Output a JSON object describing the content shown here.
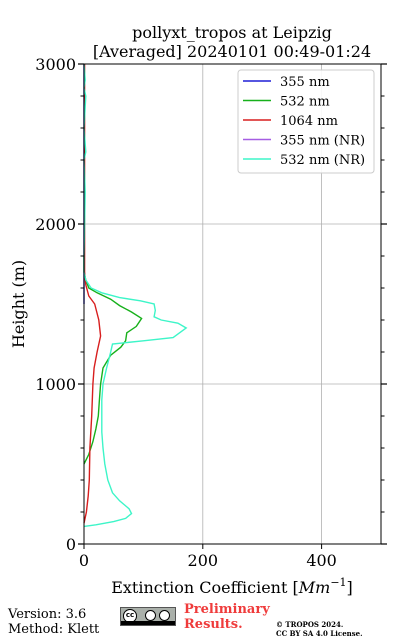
{
  "chart_data": {
    "type": "line",
    "title": "pollyxt_tropos at Leipzig",
    "subtitle": "[Averaged] 20240101 00:49-01:24",
    "xlabel": "Extinction Coefficient",
    "xlabel_unit": "Mm",
    "xlabel_unit_exp": "−1",
    "ylabel": "Height (m)",
    "xlim": [
      0,
      500
    ],
    "ylim": [
      0,
      3000
    ],
    "x_ticks": [
      0,
      200,
      400
    ],
    "y_ticks": [
      0,
      1000,
      2000,
      3000
    ],
    "grid": true,
    "legend_position": "top-right",
    "series": [
      {
        "name": "355 nm",
        "color": "#1f1fd6",
        "points": [
          [
            0,
            1500
          ],
          [
            0,
            2000
          ],
          [
            0,
            2500
          ],
          [
            0,
            3000
          ]
        ]
      },
      {
        "name": "532 nm",
        "color": "#17b01b",
        "points": [
          [
            0,
            500
          ],
          [
            8,
            560
          ],
          [
            15,
            640
          ],
          [
            20,
            720
          ],
          [
            24,
            800
          ],
          [
            26,
            900
          ],
          [
            28,
            1000
          ],
          [
            32,
            1100
          ],
          [
            45,
            1180
          ],
          [
            62,
            1230
          ],
          [
            70,
            1270
          ],
          [
            72,
            1320
          ],
          [
            88,
            1360
          ],
          [
            97,
            1410
          ],
          [
            80,
            1450
          ],
          [
            60,
            1490
          ],
          [
            45,
            1530
          ],
          [
            22,
            1570
          ],
          [
            8,
            1600
          ],
          [
            3,
            1650
          ],
          [
            0,
            1700
          ],
          [
            0,
            1800
          ]
        ]
      },
      {
        "name": "1064 nm",
        "color": "#d81e1e",
        "points": [
          [
            0,
            130
          ],
          [
            4,
            200
          ],
          [
            7,
            300
          ],
          [
            9,
            400
          ],
          [
            10,
            600
          ],
          [
            13,
            800
          ],
          [
            15,
            1000
          ],
          [
            17,
            1100
          ],
          [
            22,
            1200
          ],
          [
            28,
            1300
          ],
          [
            25,
            1400
          ],
          [
            18,
            1500
          ],
          [
            8,
            1550
          ],
          [
            3,
            1620
          ],
          [
            1,
            1700
          ],
          [
            1,
            1800
          ],
          [
            1,
            2000
          ],
          [
            1,
            2500
          ],
          [
            1,
            3000
          ]
        ]
      },
      {
        "name": "355 nm (NR)",
        "color": "#a65ee3",
        "points": []
      },
      {
        "name": "532 nm (NR)",
        "color": "#3df5c8",
        "points": [
          [
            0,
            110
          ],
          [
            20,
            120
          ],
          [
            50,
            140
          ],
          [
            70,
            160
          ],
          [
            80,
            190
          ],
          [
            76,
            220
          ],
          [
            60,
            270
          ],
          [
            48,
            320
          ],
          [
            40,
            400
          ],
          [
            35,
            500
          ],
          [
            32,
            600
          ],
          [
            30,
            700
          ],
          [
            30,
            800
          ],
          [
            30,
            900
          ],
          [
            32,
            1000
          ],
          [
            38,
            1100
          ],
          [
            45,
            1200
          ],
          [
            48,
            1250
          ],
          [
            100,
            1270
          ],
          [
            150,
            1290
          ],
          [
            172,
            1350
          ],
          [
            158,
            1380
          ],
          [
            130,
            1400
          ],
          [
            118,
            1420
          ],
          [
            120,
            1460
          ],
          [
            118,
            1500
          ],
          [
            95,
            1520
          ],
          [
            60,
            1540
          ],
          [
            30,
            1570
          ],
          [
            12,
            1600
          ],
          [
            3,
            1650
          ],
          [
            0,
            1700
          ],
          [
            0,
            1800
          ],
          [
            1,
            2000
          ],
          [
            2,
            2200
          ],
          [
            0,
            2400
          ],
          [
            3,
            2450
          ],
          [
            0,
            2600
          ],
          [
            3,
            2800
          ],
          [
            0,
            2850
          ],
          [
            2,
            2900
          ],
          [
            0,
            3000
          ]
        ]
      }
    ]
  },
  "footer": {
    "version": "Version: 3.6",
    "method": "Method: Klett",
    "cc_text": "cc",
    "prelim_line1": "Preliminary",
    "prelim_line2": "Results.",
    "copyright_line1": "© TROPOS 2024.",
    "copyright_line2": "CC BY SA 4.0 License."
  }
}
